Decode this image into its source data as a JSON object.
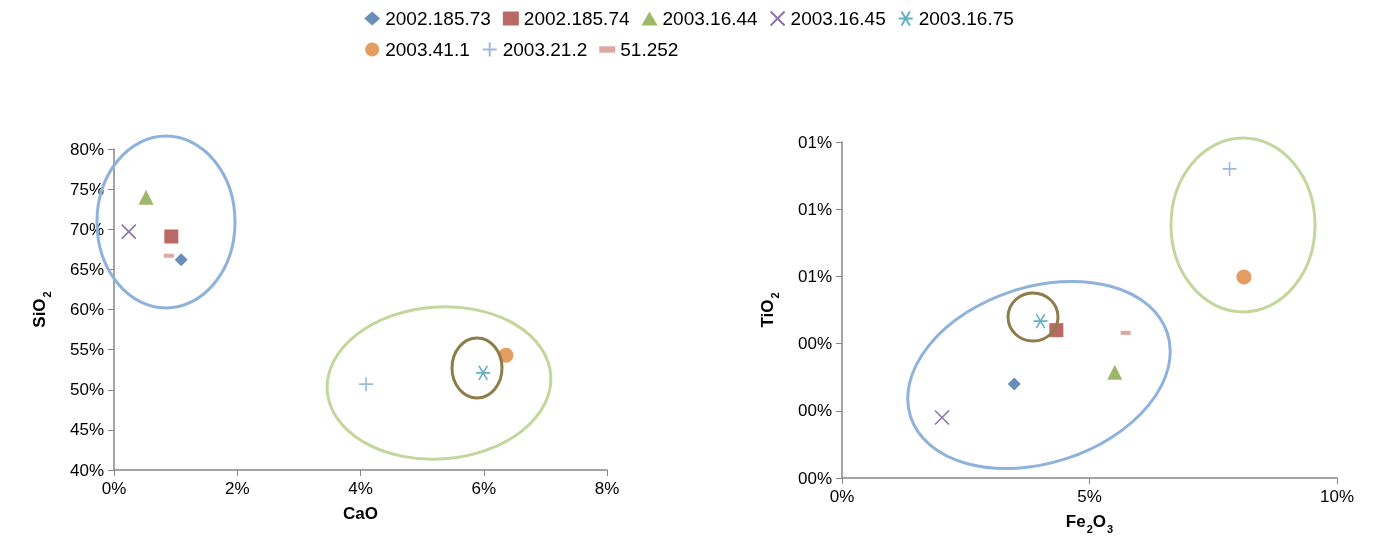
{
  "chart_data": [
    {
      "type": "scatter",
      "xlabel": "CaO",
      "ylabel": "SiO$_{2}$",
      "legend": "top",
      "grid": false,
      "xlim": [
        0,
        8
      ],
      "xticks": [
        {
          "value": 0,
          "label": "0%"
        },
        {
          "value": 2,
          "label": "2%"
        },
        {
          "value": 4,
          "label": "4%"
        },
        {
          "value": 6,
          "label": "6%"
        },
        {
          "value": 8,
          "label": "8%"
        }
      ],
      "ylim": [
        40,
        80
      ],
      "yticks": [
        {
          "value": 40,
          "label": "40%"
        },
        {
          "value": 45,
          "label": "45%"
        },
        {
          "value": 50,
          "label": "50%"
        },
        {
          "value": 55,
          "label": "55%"
        },
        {
          "value": 60,
          "label": "60%"
        },
        {
          "value": 65,
          "label": "65%"
        },
        {
          "value": 70,
          "label": "70%"
        },
        {
          "value": 75,
          "label": "75%"
        },
        {
          "value": 80,
          "label": "80%"
        }
      ],
      "series": [
        {
          "name": "2002.185.73",
          "color": "#4472a8",
          "marker": "diamond",
          "x": [
            1.09
          ],
          "values": [
            66.2
          ]
        },
        {
          "name": "2002.185.74",
          "color": "#a9443f",
          "marker": "square",
          "x": [
            0.93
          ],
          "values": [
            69.1
          ]
        },
        {
          "name": "2003.16.44",
          "color": "#86a544",
          "marker": "triangle",
          "x": [
            0.52
          ],
          "values": [
            74.0
          ]
        },
        {
          "name": "2003.16.45",
          "color": "#6f548f",
          "marker": "x",
          "x": [
            0.24
          ],
          "values": [
            69.7
          ]
        },
        {
          "name": "2003.16.75",
          "color": "#3c9bb4",
          "marker": "cross",
          "x": [
            5.99
          ],
          "values": [
            52.1
          ]
        },
        {
          "name": "2003.41.1",
          "color": "#df8338",
          "marker": "circle",
          "x": [
            6.36
          ],
          "values": [
            54.3
          ]
        },
        {
          "name": "2003.21.2",
          "color": "#8aa5d4",
          "marker": "cross",
          "x": [
            4.09
          ],
          "values": [
            50.7
          ]
        },
        {
          "name": "51.252",
          "color": "#d49190",
          "marker": "square",
          "x": [
            0.89
          ],
          "values": [
            66.7
          ]
        }
      ]
    },
    {
      "type": "scatter",
      "xlabel": "Fe$_{2}$O$_{3}$",
      "ylabel": "TiO$_{2}$",
      "legend": false,
      "grid": false,
      "xlim": [
        0,
        10
      ],
      "xticks": [
        {
          "value": 0,
          "label": "0%"
        },
        {
          "value": 5,
          "label": "5%"
        },
        {
          "value": 10,
          "label": "10%"
        }
      ],
      "ylim": [
        0,
        1
      ],
      "yticks": [
        {
          "value": 0,
          "label": "00%"
        },
        {
          "value": 0.2,
          "label": "00%"
        },
        {
          "value": 0.4,
          "label": "00%"
        },
        {
          "value": 0.6,
          "label": "01%"
        },
        {
          "value": 0.8,
          "label": "01%"
        },
        {
          "value": 1,
          "label": "01%"
        }
      ],
      "series": [
        {
          "name": "2002.185.73",
          "color": "#4472a8",
          "marker": "diamond",
          "x": [
            3.48
          ],
          "values": [
            0.28
          ]
        },
        {
          "name": "2002.185.74",
          "color": "#a9443f",
          "marker": "square",
          "x": [
            4.33
          ],
          "values": [
            0.44
          ]
        },
        {
          "name": "2003.16.44",
          "color": "#86a544",
          "marker": "triangle",
          "x": [
            5.51
          ],
          "values": [
            0.315
          ]
        },
        {
          "name": "2003.16.45",
          "color": "#6f548f",
          "marker": "x",
          "x": [
            2.02
          ],
          "values": [
            0.18
          ]
        },
        {
          "name": "2003.16.75",
          "color": "#3c9bb4",
          "marker": "cross",
          "x": [
            4.01
          ],
          "values": [
            0.467
          ]
        },
        {
          "name": "2003.41.1",
          "color": "#df8338",
          "marker": "circle",
          "x": [
            8.12
          ],
          "values": [
            0.598
          ]
        },
        {
          "name": "2003.21.2",
          "color": "#8aa5d4",
          "marker": "cross",
          "x": [
            7.83
          ],
          "values": [
            0.92
          ]
        },
        {
          "name": "51.252",
          "color": "#d49190",
          "marker": "square",
          "x": [
            5.73
          ],
          "values": [
            0.432
          ]
        }
      ]
    }
  ]
}
